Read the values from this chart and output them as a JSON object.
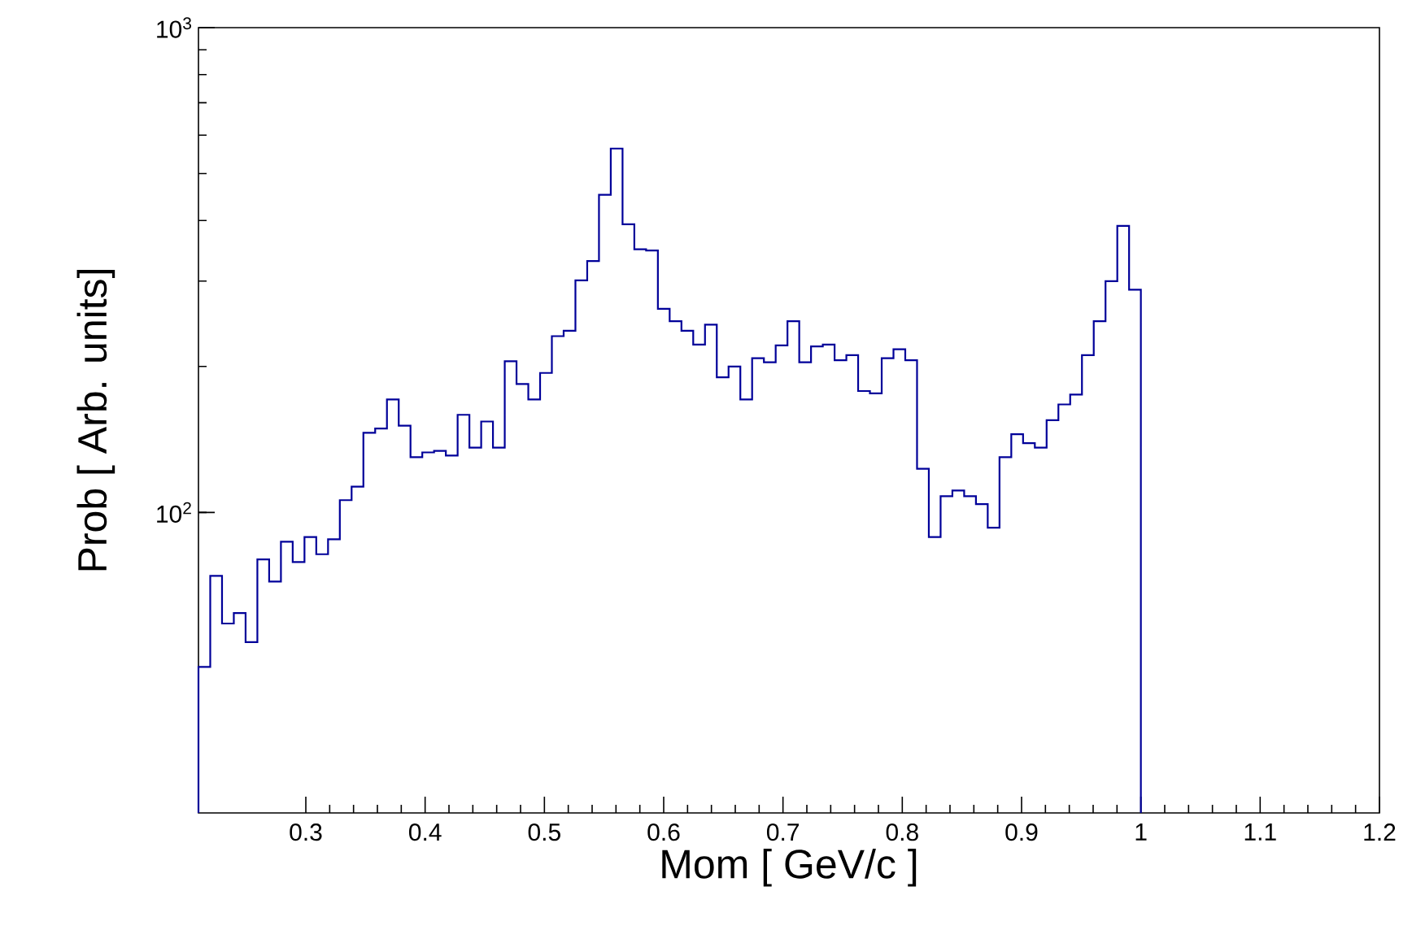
{
  "chart_data": {
    "type": "histogram",
    "xlabel": "Mom [ GeV/c  ]",
    "ylabel": "Prob [ Arb. units]",
    "color": "#000099",
    "log": "y",
    "bins": [
      0.21,
      0.219875,
      0.22975,
      0.239625,
      0.2495,
      0.259375,
      0.26925,
      0.279125,
      0.289,
      0.298875,
      0.30875,
      0.318625,
      0.3285,
      0.338375,
      0.34825,
      0.358125,
      0.368,
      0.377875,
      0.38775,
      0.397625,
      0.4075,
      0.417375,
      0.42725,
      0.437125,
      0.447,
      0.456875,
      0.46675,
      0.476625,
      0.4865,
      0.496375,
      0.50625,
      0.516125,
      0.526,
      0.535875,
      0.54575,
      0.555625,
      0.5655,
      0.575375,
      0.58525,
      0.595125,
      0.605,
      0.614875,
      0.62475,
      0.634625,
      0.6445,
      0.654375,
      0.66425,
      0.674125,
      0.684,
      0.693875,
      0.70375,
      0.713625,
      0.7235,
      0.733375,
      0.74325,
      0.753125,
      0.763,
      0.772875,
      0.78275,
      0.792625,
      0.8025,
      0.812375,
      0.82225,
      0.832125,
      0.842,
      0.851875,
      0.86175,
      0.871625,
      0.8815,
      0.891375,
      0.90125,
      0.911125,
      0.921,
      0.930875,
      0.94075,
      0.950625,
      0.9605,
      0.970375,
      0.98025,
      0.990125,
      1.0
    ],
    "values": [
      48,
      74,
      59,
      62,
      54,
      80,
      72,
      87,
      79,
      89,
      82,
      88,
      106,
      113,
      146,
      149,
      171,
      151,
      130,
      133,
      134,
      131,
      159,
      136,
      154,
      136,
      205,
      184,
      171,
      194,
      231,
      237,
      301,
      330,
      452,
      563,
      393,
      349,
      347,
      263,
      248,
      237,
      222,
      244,
      190,
      200,
      171,
      208,
      204,
      221,
      248,
      204,
      220,
      222,
      206,
      211,
      178,
      176,
      208,
      217,
      206,
      123,
      89,
      108,
      111,
      108,
      104,
      93,
      130,
      145,
      139,
      136,
      155,
      167,
      175,
      211,
      248,
      300,
      390,
      288
    ],
    "xlim": [
      0.21,
      1.2
    ],
    "ylim": [
      24,
      1000
    ],
    "xticks": [
      0.3,
      0.4,
      0.5,
      0.6,
      0.7,
      0.8,
      0.9,
      1,
      1.1,
      1.2
    ],
    "yticks": [
      {
        "value": 100,
        "label": "10$^{2}$"
      },
      {
        "value": 1000,
        "label": "10$^{3}$"
      }
    ],
    "grid": false
  }
}
